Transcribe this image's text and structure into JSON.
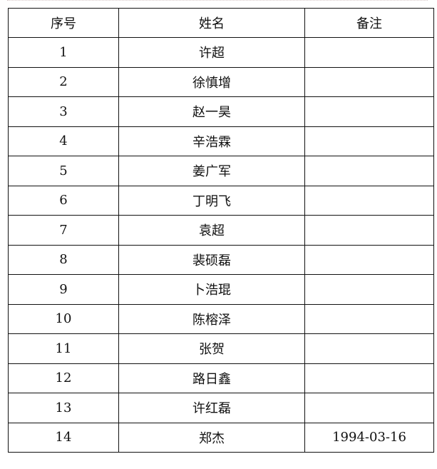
{
  "table": {
    "headers": [
      "序号",
      "姓名",
      "备注"
    ],
    "rows": [
      {
        "no": "1",
        "name": "许超",
        "note": ""
      },
      {
        "no": "2",
        "name": "徐慎增",
        "note": ""
      },
      {
        "no": "3",
        "name": "赵一昊",
        "note": ""
      },
      {
        "no": "4",
        "name": "辛浩霖",
        "note": ""
      },
      {
        "no": "5",
        "name": "姜广军",
        "note": ""
      },
      {
        "no": "6",
        "name": "丁明飞",
        "note": ""
      },
      {
        "no": "7",
        "name": "袁超",
        "note": ""
      },
      {
        "no": "8",
        "name": "裴硕磊",
        "note": ""
      },
      {
        "no": "9",
        "name": "卜浩琨",
        "note": ""
      },
      {
        "no": "10",
        "name": "陈榕泽",
        "note": ""
      },
      {
        "no": "11",
        "name": "张贺",
        "note": ""
      },
      {
        "no": "12",
        "name": "路日鑫",
        "note": ""
      },
      {
        "no": "13",
        "name": "许红磊",
        "note": ""
      },
      {
        "no": "14",
        "name": "郑杰",
        "note": "1994-03-16"
      }
    ]
  }
}
